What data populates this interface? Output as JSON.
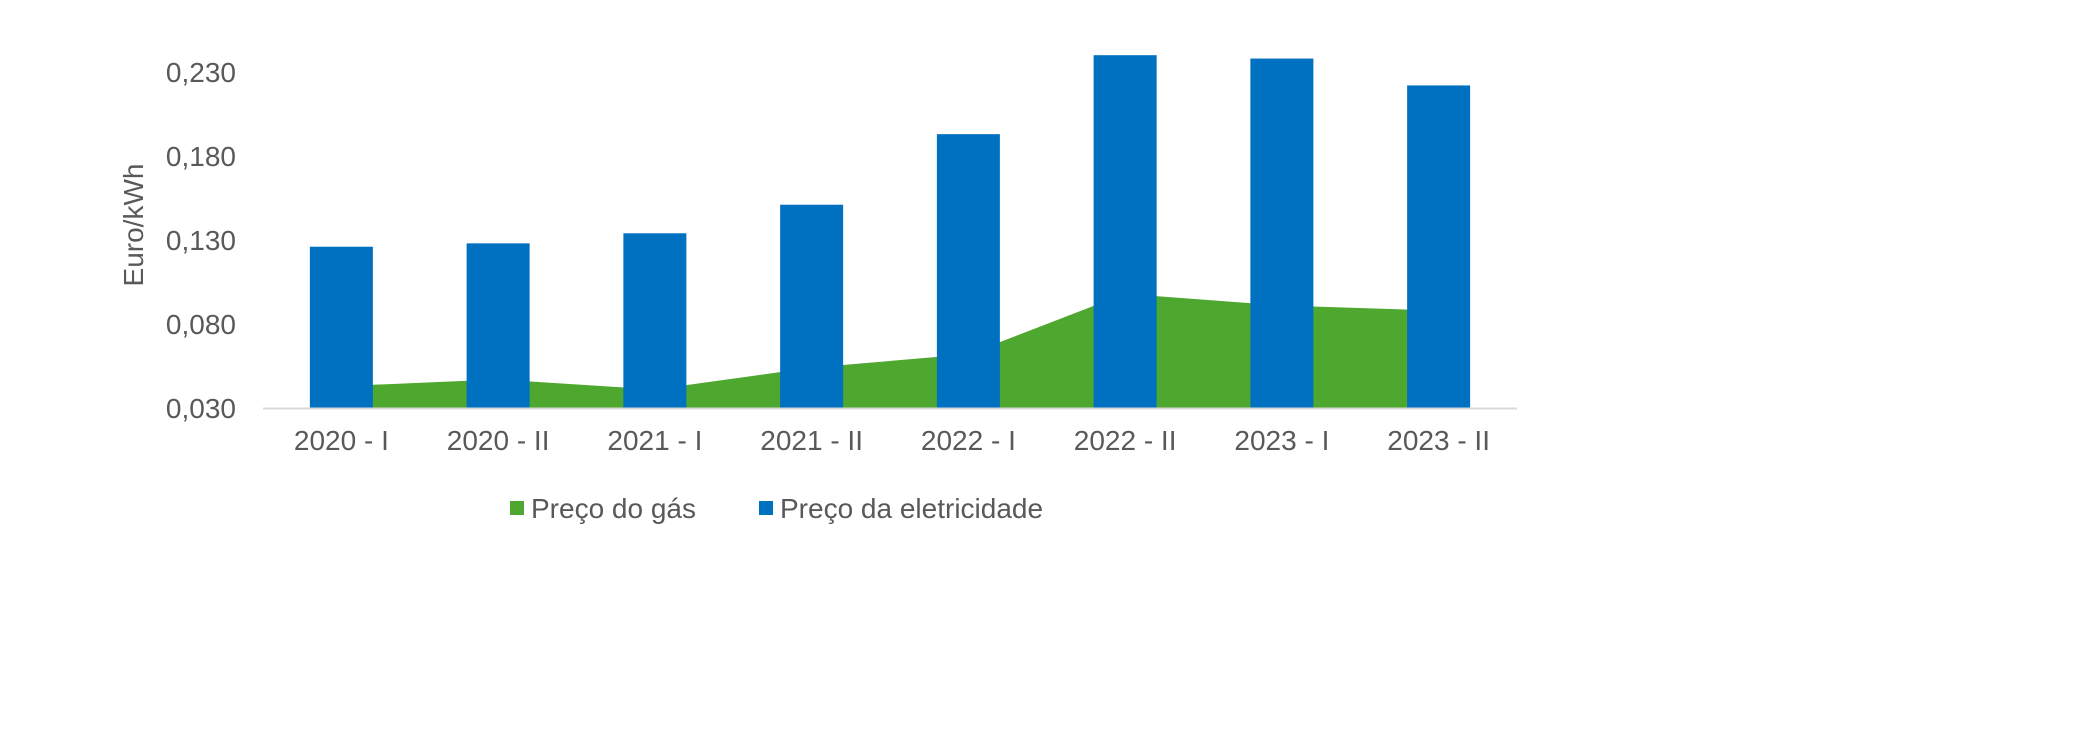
{
  "chart_data": {
    "type": "bar",
    "title": "",
    "xlabel": "",
    "ylabel": "Euro/kWh",
    "ylim": [
      0.03,
      0.25
    ],
    "yticks": [
      "0,030",
      "0,080",
      "0,130",
      "0,180",
      "0,230"
    ],
    "ytick_values": [
      0.03,
      0.08,
      0.13,
      0.18,
      0.23
    ],
    "categories": [
      "2020 - I",
      "2020 - II",
      "2021 - I",
      "2021 - II",
      "2022 - I",
      "2022 - II",
      "2023 - I",
      "2023 - II"
    ],
    "series": [
      {
        "name": "Preço do gás",
        "type": "area",
        "color": "#4EA72E",
        "values": [
          0.043,
          0.047,
          0.041,
          0.054,
          0.062,
          0.098,
          0.091,
          0.088
        ]
      },
      {
        "name": "Preço da eletricidade",
        "type": "bar",
        "color": "#0070C0",
        "values": [
          0.126,
          0.128,
          0.134,
          0.151,
          0.193,
          0.24,
          0.238,
          0.222
        ]
      }
    ],
    "grid": false,
    "legend_position": "bottom"
  }
}
